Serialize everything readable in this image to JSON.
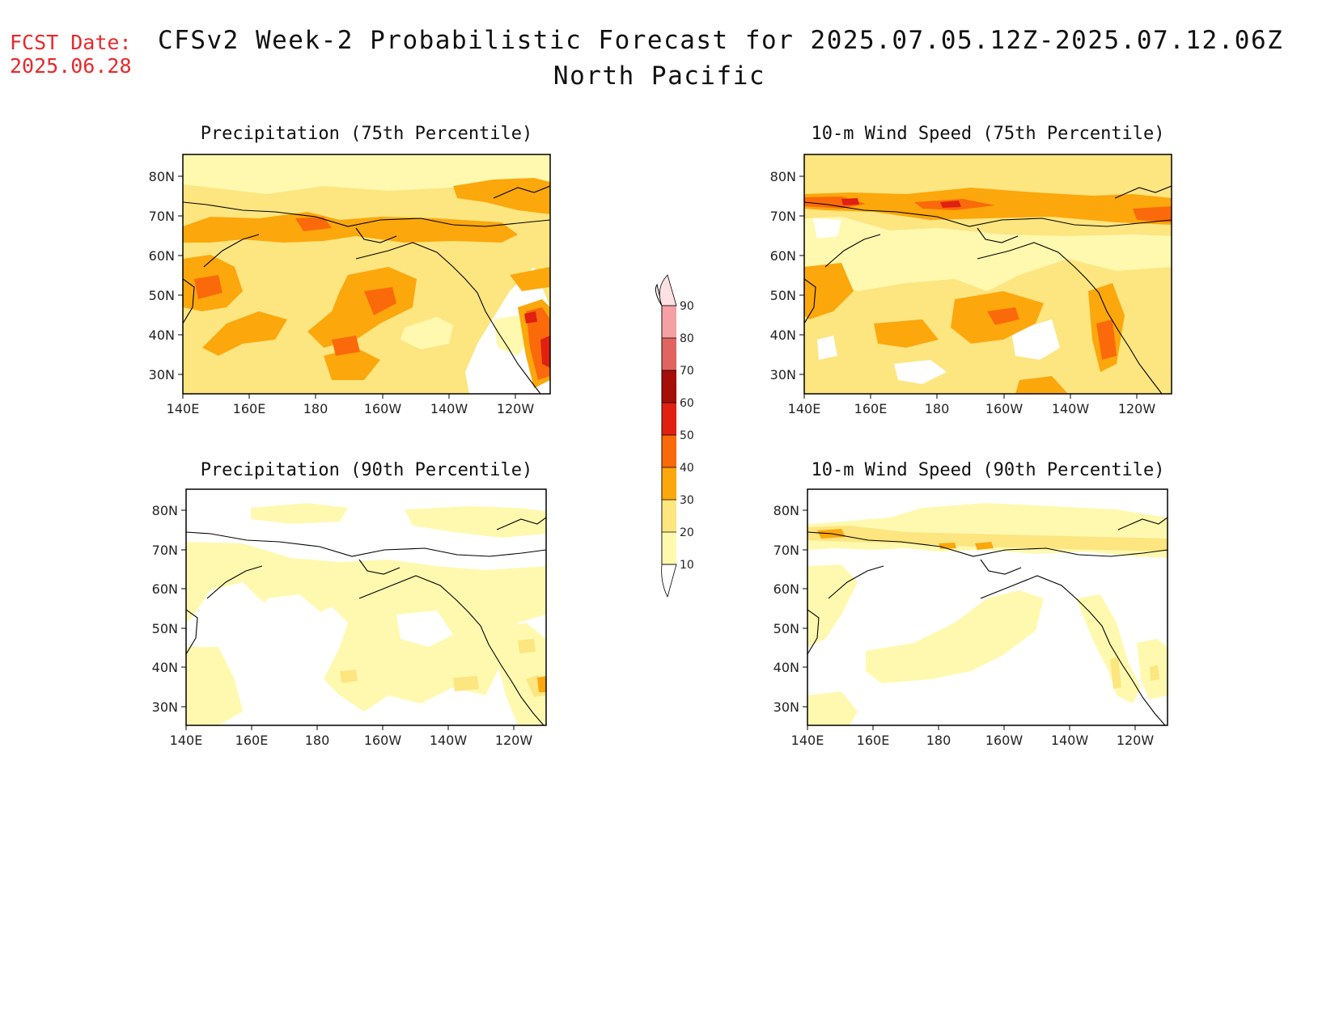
{
  "header": {
    "fcst_label": "FCST Date:",
    "fcst_date": "2025.06.28",
    "title": "CFSv2 Week-2 Probabilistic Forecast for 2025.07.05.12Z-2025.07.12.06Z",
    "subtitle": "North Pacific"
  },
  "colors": {
    "c10": "#fff9b0",
    "c20": "#fde580",
    "c30": "#fca70c",
    "c40": "#fb6a0a",
    "c50": "#e02010",
    "c60": "#a50f08",
    "c70": "#e06460",
    "c80": "#f4a0a4",
    "c90": "#fde0e2",
    "coast": "#000000"
  },
  "panels": [
    {
      "id": "precip-75",
      "title": "Precipitation (75th Percentile)"
    },
    {
      "id": "wind-75",
      "title": "10-m Wind Speed (75th Percentile)"
    },
    {
      "id": "precip-90",
      "title": "Precipitation (90th Percentile)"
    },
    {
      "id": "wind-90",
      "title": "10-m Wind Speed (90th Percentile)"
    }
  ],
  "axes": {
    "lat_labels": [
      "30N",
      "40N",
      "50N",
      "60N",
      "70N",
      "80N"
    ],
    "lon_labels": [
      "140E",
      "160E",
      "180",
      "160W",
      "140W",
      "120W"
    ]
  },
  "colorbar": {
    "levels": [
      "10",
      "20",
      "30",
      "40",
      "50",
      "60",
      "70",
      "80",
      "90"
    ]
  }
}
